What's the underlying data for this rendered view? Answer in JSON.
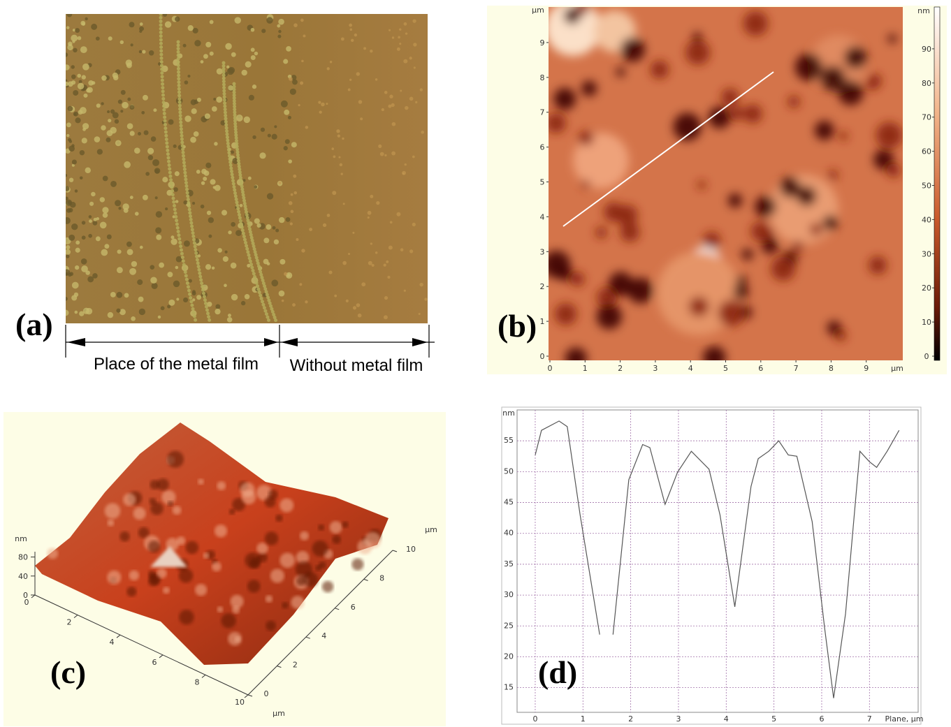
{
  "panel_a": {
    "label": "(a)",
    "left_text": "Place of the metal film",
    "right_text": "Without metal film"
  },
  "panel_b": {
    "label": "(b)",
    "y_unit": "µm",
    "x_unit": "µm",
    "xticks": [
      0,
      1,
      2,
      3,
      4,
      5,
      6,
      7,
      8,
      9
    ],
    "yticks": [
      0,
      1,
      2,
      3,
      4,
      5,
      6,
      7,
      8,
      9
    ],
    "colorbar_unit": "nm",
    "colorbar_ticks": [
      0,
      10,
      20,
      30,
      40,
      50,
      60,
      70,
      80,
      90
    ]
  },
  "panel_c": {
    "label": "(c)",
    "z_unit": "nm",
    "z_ticks": [
      0,
      40,
      80
    ],
    "x_ticks": [
      0,
      2,
      4,
      6,
      8,
      10
    ],
    "y_ticks": [
      0,
      2,
      4,
      6,
      8,
      10
    ],
    "x_unit": "µm",
    "y_unit": "µm"
  },
  "chart_data": {
    "type": "line",
    "label": "(d)",
    "y_label": "nm",
    "x_label": "Plane, µm",
    "x": [
      0,
      0.13,
      0.5,
      0.67,
      0.94,
      1.35,
      1.49,
      1.63,
      1.96,
      2.25,
      2.4,
      2.72,
      2.98,
      3.27,
      3.64,
      3.87,
      4.18,
      4.52,
      4.67,
      4.89,
      5.1,
      5.3,
      5.48,
      5.8,
      6.06,
      6.25,
      6.5,
      6.8,
      7.0,
      7.15,
      7.37,
      7.62
    ],
    "series": [
      {
        "color": "#555555",
        "values": [
          52.7,
          56.7,
          58.2,
          57.3,
          43.0,
          23.6,
          null,
          23.6,
          48.7,
          54.4,
          53.9,
          44.7,
          49.9,
          53.3,
          50.4,
          43.0,
          28.1,
          47.6,
          52.1,
          53.3,
          55.0,
          52.7,
          52.5,
          41.9,
          24.7,
          13.3,
          27.0,
          53.3,
          51.6,
          50.7,
          53.3,
          56.7
        ]
      }
    ],
    "xlim": [
      -0.38,
      8.02
    ],
    "ylim": [
      11,
      60
    ],
    "xticks": [
      0,
      1,
      2,
      3,
      4,
      5,
      6,
      7
    ],
    "yticks": [
      15,
      20,
      25,
      30,
      35,
      40,
      45,
      50,
      55
    ],
    "grid": true
  }
}
